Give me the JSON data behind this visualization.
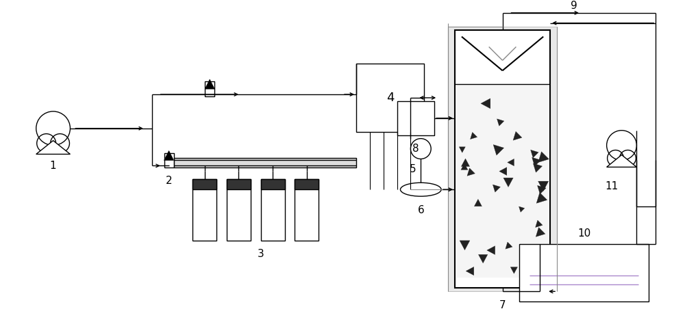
{
  "bg_color": "#ffffff",
  "line_color": "#000000",
  "gray_color": "#888888",
  "label_fontsize": 11,
  "figsize": [
    10.0,
    4.71
  ],
  "dpi": 100
}
